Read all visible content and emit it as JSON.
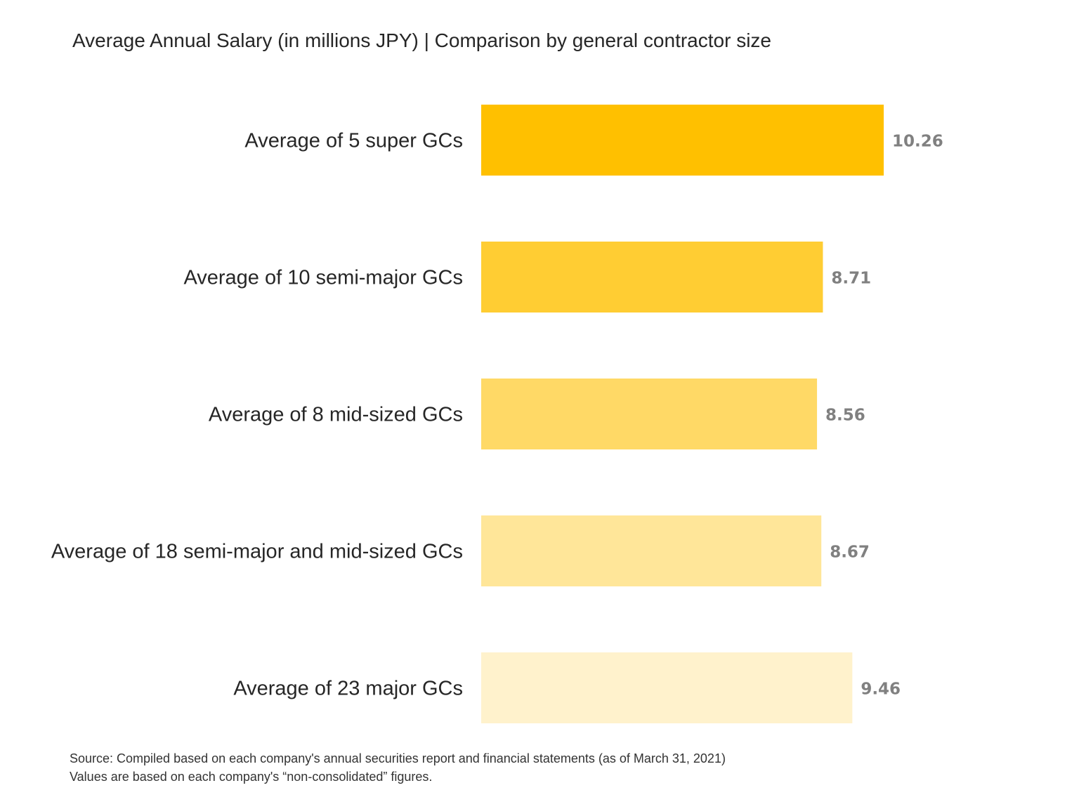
{
  "chart_data": {
    "type": "bar",
    "orientation": "horizontal",
    "title": "Average Annual Salary (in millions JPY)  |  Comparison by general contractor size",
    "categories": [
      "Average of 5 super GCs",
      "Average of 10 semi-major GCs",
      "Average of 8 mid-sized GCs",
      "Average of 18 semi-major and mid-sized GCs",
      "Average of 23 major GCs"
    ],
    "values": [
      10.26,
      8.71,
      8.56,
      8.67,
      9.46
    ],
    "value_labels": [
      "10.26",
      "8.71",
      "8.56",
      "8.67",
      "9.46"
    ],
    "colors": [
      "#FFC000",
      "#FFCD33",
      "#FFD966",
      "#FFE699",
      "#FFF2CC"
    ],
    "value_label_color": "#808080",
    "xlim": [
      0,
      10.26
    ],
    "grid": false,
    "legend": "none"
  },
  "footnotes": {
    "source": "Source: Compiled based on each company's annual securities report and financial statements (as of March 31, 2021)",
    "note": "Values are based on each company's “non-consolidated” figures."
  }
}
